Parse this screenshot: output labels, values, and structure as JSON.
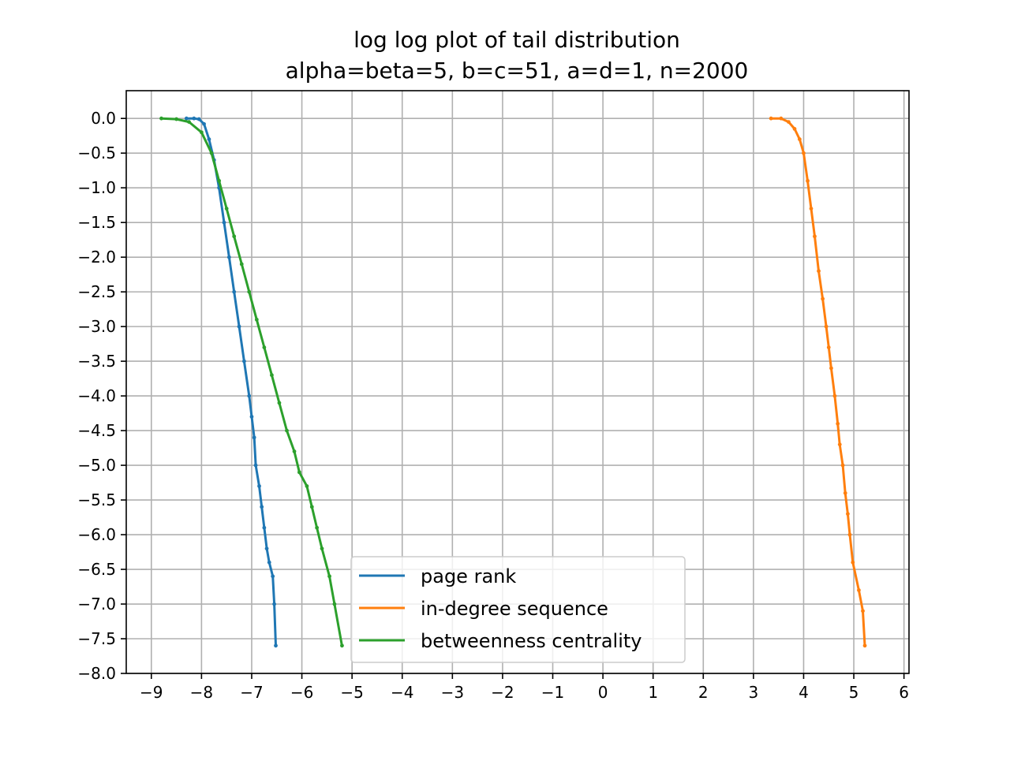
{
  "chart_data": {
    "type": "line",
    "title": "log log plot of tail distribution",
    "subtitle": "alpha=beta=5, b=c=51, a=d=1, n=2000",
    "xlabel": "",
    "ylabel": "",
    "xlim": [
      -9.5,
      6.1
    ],
    "ylim": [
      -8.0,
      0.4
    ],
    "x_ticks": [
      -9,
      -8,
      -7,
      -6,
      -5,
      -4,
      -3,
      -2,
      -1,
      0,
      1,
      2,
      3,
      4,
      5,
      6
    ],
    "y_ticks": [
      0.0,
      -0.5,
      -1.0,
      -1.5,
      -2.0,
      -2.5,
      -3.0,
      -3.5,
      -4.0,
      -4.5,
      -5.0,
      -5.5,
      -6.0,
      -6.5,
      -7.0,
      -7.5,
      -8.0
    ],
    "x_tick_labels": [
      "−9",
      "−8",
      "−7",
      "−6",
      "−5",
      "−4",
      "−3",
      "−2",
      "−1",
      "0",
      "1",
      "2",
      "3",
      "4",
      "5",
      "6"
    ],
    "y_tick_labels": [
      "0.0",
      "−0.5",
      "−1.0",
      "−1.5",
      "−2.0",
      "−2.5",
      "−3.0",
      "−3.5",
      "−4.0",
      "−4.5",
      "−5.0",
      "−5.5",
      "−6.0",
      "−6.5",
      "−7.0",
      "−7.5",
      "−8.0"
    ],
    "grid": true,
    "legend_position": "lower-center",
    "series": [
      {
        "name": "page rank",
        "color": "#1f77b4",
        "points": [
          [
            -8.3,
            0.0
          ],
          [
            -8.15,
            0.0
          ],
          [
            -8.05,
            -0.01
          ],
          [
            -7.95,
            -0.08
          ],
          [
            -7.85,
            -0.3
          ],
          [
            -7.75,
            -0.6
          ],
          [
            -7.65,
            -1.0
          ],
          [
            -7.55,
            -1.5
          ],
          [
            -7.45,
            -2.0
          ],
          [
            -7.35,
            -2.5
          ],
          [
            -7.25,
            -3.0
          ],
          [
            -7.15,
            -3.5
          ],
          [
            -7.05,
            -4.0
          ],
          [
            -7.0,
            -4.3
          ],
          [
            -6.95,
            -4.6
          ],
          [
            -6.92,
            -5.0
          ],
          [
            -6.85,
            -5.3
          ],
          [
            -6.8,
            -5.6
          ],
          [
            -6.75,
            -5.9
          ],
          [
            -6.7,
            -6.2
          ],
          [
            -6.65,
            -6.4
          ],
          [
            -6.58,
            -6.6
          ],
          [
            -6.55,
            -7.0
          ],
          [
            -6.52,
            -7.6
          ]
        ]
      },
      {
        "name": "in-degree sequence",
        "color": "#ff7f0e",
        "points": [
          [
            3.35,
            0.0
          ],
          [
            3.55,
            0.0
          ],
          [
            3.7,
            -0.05
          ],
          [
            3.82,
            -0.15
          ],
          [
            3.92,
            -0.3
          ],
          [
            4.0,
            -0.5
          ],
          [
            4.08,
            -0.9
          ],
          [
            4.15,
            -1.3
          ],
          [
            4.22,
            -1.7
          ],
          [
            4.3,
            -2.2
          ],
          [
            4.38,
            -2.6
          ],
          [
            4.45,
            -3.0
          ],
          [
            4.5,
            -3.3
          ],
          [
            4.55,
            -3.6
          ],
          [
            4.62,
            -4.0
          ],
          [
            4.68,
            -4.4
          ],
          [
            4.72,
            -4.7
          ],
          [
            4.78,
            -5.0
          ],
          [
            4.83,
            -5.4
          ],
          [
            4.88,
            -5.7
          ],
          [
            4.92,
            -6.0
          ],
          [
            4.98,
            -6.4
          ],
          [
            5.1,
            -6.8
          ],
          [
            5.18,
            -7.1
          ],
          [
            5.22,
            -7.6
          ]
        ]
      },
      {
        "name": "betweenness centrality",
        "color": "#2ca02c",
        "points": [
          [
            -8.8,
            0.0
          ],
          [
            -8.5,
            -0.01
          ],
          [
            -8.25,
            -0.05
          ],
          [
            -8.0,
            -0.2
          ],
          [
            -7.8,
            -0.5
          ],
          [
            -7.65,
            -0.9
          ],
          [
            -7.5,
            -1.3
          ],
          [
            -7.35,
            -1.7
          ],
          [
            -7.2,
            -2.1
          ],
          [
            -7.05,
            -2.5
          ],
          [
            -6.9,
            -2.9
          ],
          [
            -6.75,
            -3.3
          ],
          [
            -6.6,
            -3.7
          ],
          [
            -6.45,
            -4.1
          ],
          [
            -6.3,
            -4.5
          ],
          [
            -6.15,
            -4.8
          ],
          [
            -6.05,
            -5.1
          ],
          [
            -5.9,
            -5.3
          ],
          [
            -5.8,
            -5.6
          ],
          [
            -5.7,
            -5.9
          ],
          [
            -5.6,
            -6.2
          ],
          [
            -5.45,
            -6.6
          ],
          [
            -5.35,
            -7.0
          ],
          [
            -5.2,
            -7.6
          ]
        ]
      }
    ]
  }
}
